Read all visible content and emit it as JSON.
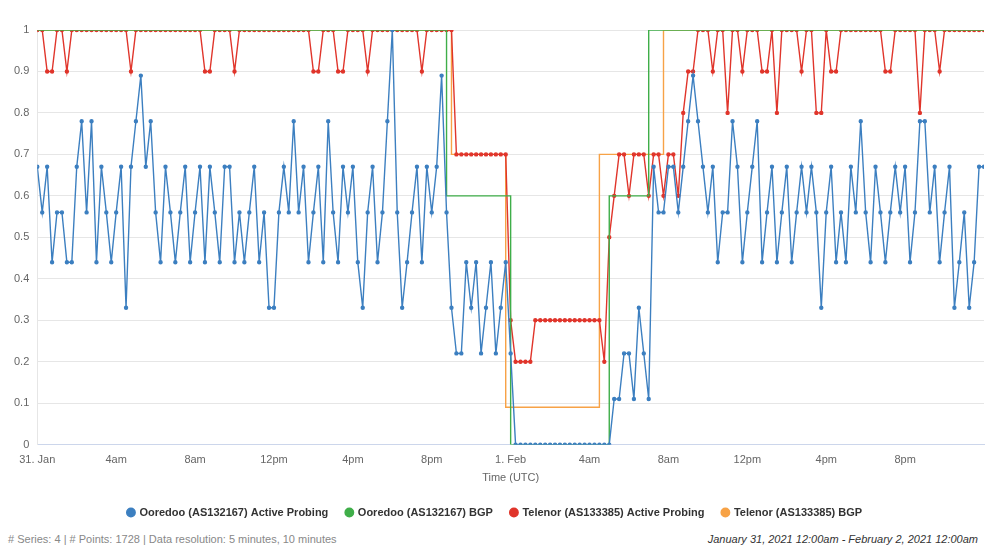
{
  "chart_data": {
    "type": "line",
    "xlabel": "Time (UTC)",
    "annotations": [
      "# Series: 4 | # Points: 1728 | Data resolution: 5 minutes, 10 minutes",
      "January 31, 2021 12:00am - February 2, 2021 12:00am"
    ],
    "xlim": [
      0,
      48
    ],
    "xticks": [
      {
        "value": 0,
        "label": "31. Jan"
      },
      {
        "value": 4,
        "label": "4am"
      },
      {
        "value": 8,
        "label": "8am"
      },
      {
        "value": 12,
        "label": "12pm"
      },
      {
        "value": 16,
        "label": "4pm"
      },
      {
        "value": 20,
        "label": "8pm"
      },
      {
        "value": 24,
        "label": "1. Feb"
      },
      {
        "value": 28,
        "label": "4am"
      },
      {
        "value": 32,
        "label": "8am"
      },
      {
        "value": 36,
        "label": "12pm"
      },
      {
        "value": 40,
        "label": "4pm"
      },
      {
        "value": 44,
        "label": "8pm"
      }
    ],
    "ylim": [
      0,
      1
    ],
    "yticks": [
      0,
      0.1,
      0.2,
      0.3,
      0.4,
      0.5,
      0.6,
      0.7,
      0.8,
      0.9,
      1
    ],
    "grid": true,
    "legend": "bottom",
    "x": [
      0,
      0.25,
      0.5,
      0.75,
      1,
      1.25,
      1.5,
      1.75,
      2,
      2.25,
      2.5,
      2.75,
      3,
      3.25,
      3.5,
      3.75,
      4,
      4.25,
      4.5,
      4.75,
      5,
      5.25,
      5.5,
      5.75,
      6,
      6.25,
      6.5,
      6.75,
      7,
      7.25,
      7.5,
      7.75,
      8,
      8.25,
      8.5,
      8.75,
      9,
      9.25,
      9.5,
      9.75,
      10,
      10.25,
      10.5,
      10.75,
      11,
      11.25,
      11.5,
      11.75,
      12,
      12.25,
      12.5,
      12.75,
      13,
      13.25,
      13.5,
      13.75,
      14,
      14.25,
      14.5,
      14.75,
      15,
      15.25,
      15.5,
      15.75,
      16,
      16.25,
      16.5,
      16.75,
      17,
      17.25,
      17.5,
      17.75,
      18,
      18.25,
      18.5,
      18.75,
      19,
      19.25,
      19.5,
      19.75,
      20,
      20.25,
      20.5,
      20.75,
      21,
      21.25,
      21.5,
      21.75,
      22,
      22.25,
      22.5,
      22.75,
      23,
      23.25,
      23.5,
      23.75,
      24,
      24.25,
      24.5,
      24.75,
      25,
      25.25,
      25.5,
      25.75,
      26,
      26.25,
      26.5,
      26.75,
      27,
      27.25,
      27.5,
      27.75,
      28,
      28.25,
      28.5,
      28.75,
      29,
      29.25,
      29.5,
      29.75,
      30,
      30.25,
      30.5,
      30.75,
      31,
      31.25,
      31.5,
      31.75,
      32,
      32.25,
      32.5,
      32.75,
      33,
      33.25,
      33.5,
      33.75,
      34,
      34.25,
      34.5,
      34.75,
      35,
      35.25,
      35.5,
      35.75,
      36,
      36.25,
      36.5,
      36.75,
      37,
      37.25,
      37.5,
      37.75,
      38,
      38.25,
      38.5,
      38.75,
      39,
      39.25,
      39.5,
      39.75,
      40,
      40.25,
      40.5,
      40.75,
      41,
      41.25,
      41.5,
      41.75,
      42,
      42.25,
      42.5,
      42.75,
      43,
      43.25,
      43.5,
      43.75,
      44,
      44.25,
      44.5,
      44.75,
      45,
      45.25,
      45.5,
      45.75,
      46,
      46.25,
      46.5,
      46.75,
      47,
      47.25,
      47.5,
      47.75,
      48
    ],
    "series": [
      {
        "name": "Ooredoo (AS132167) Active Probing",
        "color": "#3c7fc0",
        "marker": "circle",
        "line_style": "solid",
        "values": [
          0.67,
          0.56,
          0.67,
          0.44,
          0.56,
          0.56,
          0.44,
          0.44,
          0.67,
          0.78,
          0.56,
          0.78,
          0.44,
          0.67,
          0.56,
          0.44,
          0.56,
          0.67,
          0.33,
          0.67,
          0.78,
          0.89,
          0.67,
          0.78,
          0.56,
          0.44,
          0.67,
          0.56,
          0.44,
          0.56,
          0.67,
          0.44,
          0.56,
          0.67,
          0.44,
          0.67,
          0.56,
          0.44,
          0.67,
          0.67,
          0.44,
          0.56,
          0.44,
          0.56,
          0.67,
          0.44,
          0.56,
          0.33,
          0.33,
          0.56,
          0.67,
          0.56,
          0.78,
          0.56,
          0.67,
          0.44,
          0.56,
          0.67,
          0.44,
          0.78,
          0.56,
          0.44,
          0.67,
          0.56,
          0.67,
          0.44,
          0.33,
          0.56,
          0.67,
          0.44,
          0.56,
          0.78,
          1,
          0.56,
          0.33,
          0.44,
          0.56,
          0.67,
          0.44,
          0.67,
          0.56,
          0.67,
          0.89,
          0.56,
          0.33,
          0.22,
          0.22,
          0.44,
          0.33,
          0.44,
          0.22,
          0.33,
          0.44,
          0.22,
          0.33,
          0.44,
          0.22,
          0,
          0,
          0,
          0,
          0,
          0,
          0,
          0,
          0,
          0,
          0,
          0,
          0,
          0,
          0,
          0,
          0,
          0,
          0,
          0,
          0.11,
          0.11,
          0.22,
          0.22,
          0.11,
          0.33,
          0.22,
          0.11,
          0.67,
          0.56,
          0.56,
          0.67,
          0.67,
          0.56,
          0.67,
          0.78,
          0.89,
          0.78,
          0.67,
          0.56,
          0.67,
          0.44,
          0.56,
          0.56,
          0.78,
          0.67,
          0.44,
          0.56,
          0.67,
          0.78,
          0.44,
          0.56,
          0.67,
          0.44,
          0.56,
          0.67,
          0.44,
          0.56,
          0.67,
          0.56,
          0.67,
          0.56,
          0.33,
          0.56,
          0.67,
          0.44,
          0.56,
          0.44,
          0.67,
          0.56,
          0.78,
          0.56,
          0.44,
          0.67,
          0.56,
          0.44,
          0.56,
          0.67,
          0.56,
          0.67,
          0.44,
          0.56,
          0.78,
          0.78,
          0.56,
          0.67,
          0.44,
          0.56,
          0.67,
          0.33,
          0.44,
          0.56,
          0.33,
          0.44,
          0.67,
          0.67
        ]
      },
      {
        "name": "Ooredoo (AS132167) BGP",
        "color": "#3fae49",
        "marker": "none",
        "line_style": "step",
        "values": [
          1,
          1,
          1,
          1,
          1,
          1,
          1,
          1,
          1,
          1,
          1,
          1,
          1,
          1,
          1,
          1,
          1,
          1,
          1,
          1,
          1,
          1,
          1,
          1,
          1,
          1,
          1,
          1,
          1,
          1,
          1,
          1,
          1,
          1,
          1,
          1,
          1,
          1,
          1,
          1,
          1,
          1,
          1,
          1,
          1,
          1,
          1,
          1,
          1,
          1,
          1,
          1,
          1,
          1,
          1,
          1,
          1,
          1,
          1,
          1,
          1,
          1,
          1,
          1,
          1,
          1,
          1,
          1,
          1,
          1,
          1,
          1,
          1,
          1,
          1,
          1,
          1,
          1,
          1,
          1,
          1,
          1,
          1,
          1,
          0.6,
          0.6,
          0.6,
          0.6,
          0.6,
          0.6,
          0.6,
          0.6,
          0.6,
          0.6,
          0.6,
          0.6,
          0.6,
          0,
          0,
          0,
          0,
          0,
          0,
          0,
          0,
          0,
          0,
          0,
          0,
          0,
          0,
          0,
          0,
          0,
          0,
          0,
          0,
          0.6,
          0.6,
          0.6,
          0.6,
          0.6,
          0.6,
          0.6,
          0.6,
          1,
          1,
          1,
          1,
          1,
          1,
          1,
          1,
          1,
          1,
          1,
          1,
          1,
          1,
          1,
          1,
          1,
          1,
          1,
          1,
          1,
          1,
          1,
          1,
          1,
          1,
          1,
          1,
          1,
          1,
          1,
          1,
          1,
          1,
          1,
          1,
          1,
          1,
          1,
          1,
          1,
          1,
          1,
          1,
          1,
          1,
          1,
          1,
          1,
          1,
          1,
          1,
          1,
          1,
          1,
          1,
          1,
          1,
          1,
          1,
          1,
          1,
          1,
          1,
          1,
          1,
          1,
          1
        ]
      },
      {
        "name": "Telenor (AS133385) Active Probing",
        "color": "#e0352b",
        "marker": "circle",
        "line_style": "solid",
        "values": [
          1,
          1,
          0.9,
          0.9,
          1,
          1,
          0.9,
          1,
          1,
          1,
          1,
          1,
          1,
          1,
          1,
          1,
          1,
          1,
          1,
          0.9,
          1,
          1,
          1,
          1,
          1,
          1,
          1,
          1,
          1,
          1,
          1,
          1,
          1,
          1,
          0.9,
          0.9,
          1,
          1,
          1,
          1,
          0.9,
          1,
          1,
          1,
          1,
          1,
          1,
          1,
          1,
          1,
          1,
          1,
          1,
          1,
          1,
          1,
          0.9,
          0.9,
          1,
          1,
          1,
          0.9,
          0.9,
          1,
          1,
          1,
          1,
          0.9,
          1,
          1,
          1,
          1,
          1,
          1,
          1,
          1,
          1,
          1,
          0.9,
          1,
          1,
          1,
          1,
          1,
          1,
          0.7,
          0.7,
          0.7,
          0.7,
          0.7,
          0.7,
          0.7,
          0.7,
          0.7,
          0.7,
          0.7,
          0.3,
          0.2,
          0.2,
          0.2,
          0.2,
          0.3,
          0.3,
          0.3,
          0.3,
          0.3,
          0.3,
          0.3,
          0.3,
          0.3,
          0.3,
          0.3,
          0.3,
          0.3,
          0.3,
          0.2,
          0.5,
          0.6,
          0.7,
          0.7,
          0.6,
          0.7,
          0.7,
          0.7,
          0.6,
          0.7,
          0.7,
          0.6,
          0.7,
          0.7,
          0.6,
          0.8,
          0.9,
          0.9,
          1,
          1,
          1,
          0.9,
          1,
          1,
          0.8,
          1,
          1,
          0.9,
          1,
          1,
          1,
          0.9,
          0.9,
          1,
          0.8,
          1,
          1,
          1,
          1,
          0.9,
          1,
          1,
          0.8,
          0.8,
          1,
          0.9,
          0.9,
          1,
          1,
          1,
          1,
          1,
          1,
          1,
          1,
          1,
          0.9,
          0.9,
          1,
          1,
          1,
          1,
          1,
          0.8,
          1,
          1,
          1,
          0.9,
          1,
          1,
          1,
          1,
          1,
          1,
          1,
          1,
          1
        ]
      },
      {
        "name": "Telenor (AS133385) BGP",
        "color": "#f7a246",
        "marker": "none",
        "line_style": "step",
        "values": [
          1,
          1,
          1,
          1,
          1,
          1,
          1,
          1,
          1,
          1,
          1,
          1,
          1,
          1,
          1,
          1,
          1,
          1,
          1,
          1,
          1,
          1,
          1,
          1,
          1,
          1,
          1,
          1,
          1,
          1,
          1,
          1,
          1,
          1,
          1,
          1,
          1,
          1,
          1,
          1,
          1,
          1,
          1,
          1,
          1,
          1,
          1,
          1,
          1,
          1,
          1,
          1,
          1,
          1,
          1,
          1,
          1,
          1,
          1,
          1,
          1,
          1,
          1,
          1,
          1,
          1,
          1,
          1,
          1,
          1,
          1,
          1,
          1,
          1,
          1,
          1,
          1,
          1,
          1,
          1,
          1,
          1,
          1,
          1,
          1,
          0.7,
          0.7,
          0.7,
          0.7,
          0.7,
          0.7,
          0.7,
          0.7,
          0.7,
          0.7,
          0.7,
          0.09,
          0.09,
          0.09,
          0.09,
          0.09,
          0.09,
          0.09,
          0.09,
          0.09,
          0.09,
          0.09,
          0.09,
          0.09,
          0.09,
          0.09,
          0.09,
          0.09,
          0.09,
          0.09,
          0.7,
          0.7,
          0.7,
          0.7,
          0.7,
          0.7,
          0.7,
          0.7,
          0.7,
          0.7,
          0.7,
          0.7,
          0.7,
          1,
          1,
          1,
          1,
          1,
          1,
          1,
          1,
          1,
          1,
          1,
          1,
          1,
          1,
          1,
          1,
          1,
          1,
          1,
          1,
          1,
          1,
          1,
          1,
          1,
          1,
          1,
          1,
          1,
          1,
          1,
          1,
          1,
          1,
          1,
          1,
          1,
          1,
          1,
          1,
          1,
          1,
          1,
          1,
          1,
          1,
          1,
          1,
          1,
          1,
          1,
          1,
          1,
          1,
          1,
          1,
          1,
          1,
          1,
          1,
          1,
          1,
          1,
          1,
          1
        ]
      }
    ]
  }
}
